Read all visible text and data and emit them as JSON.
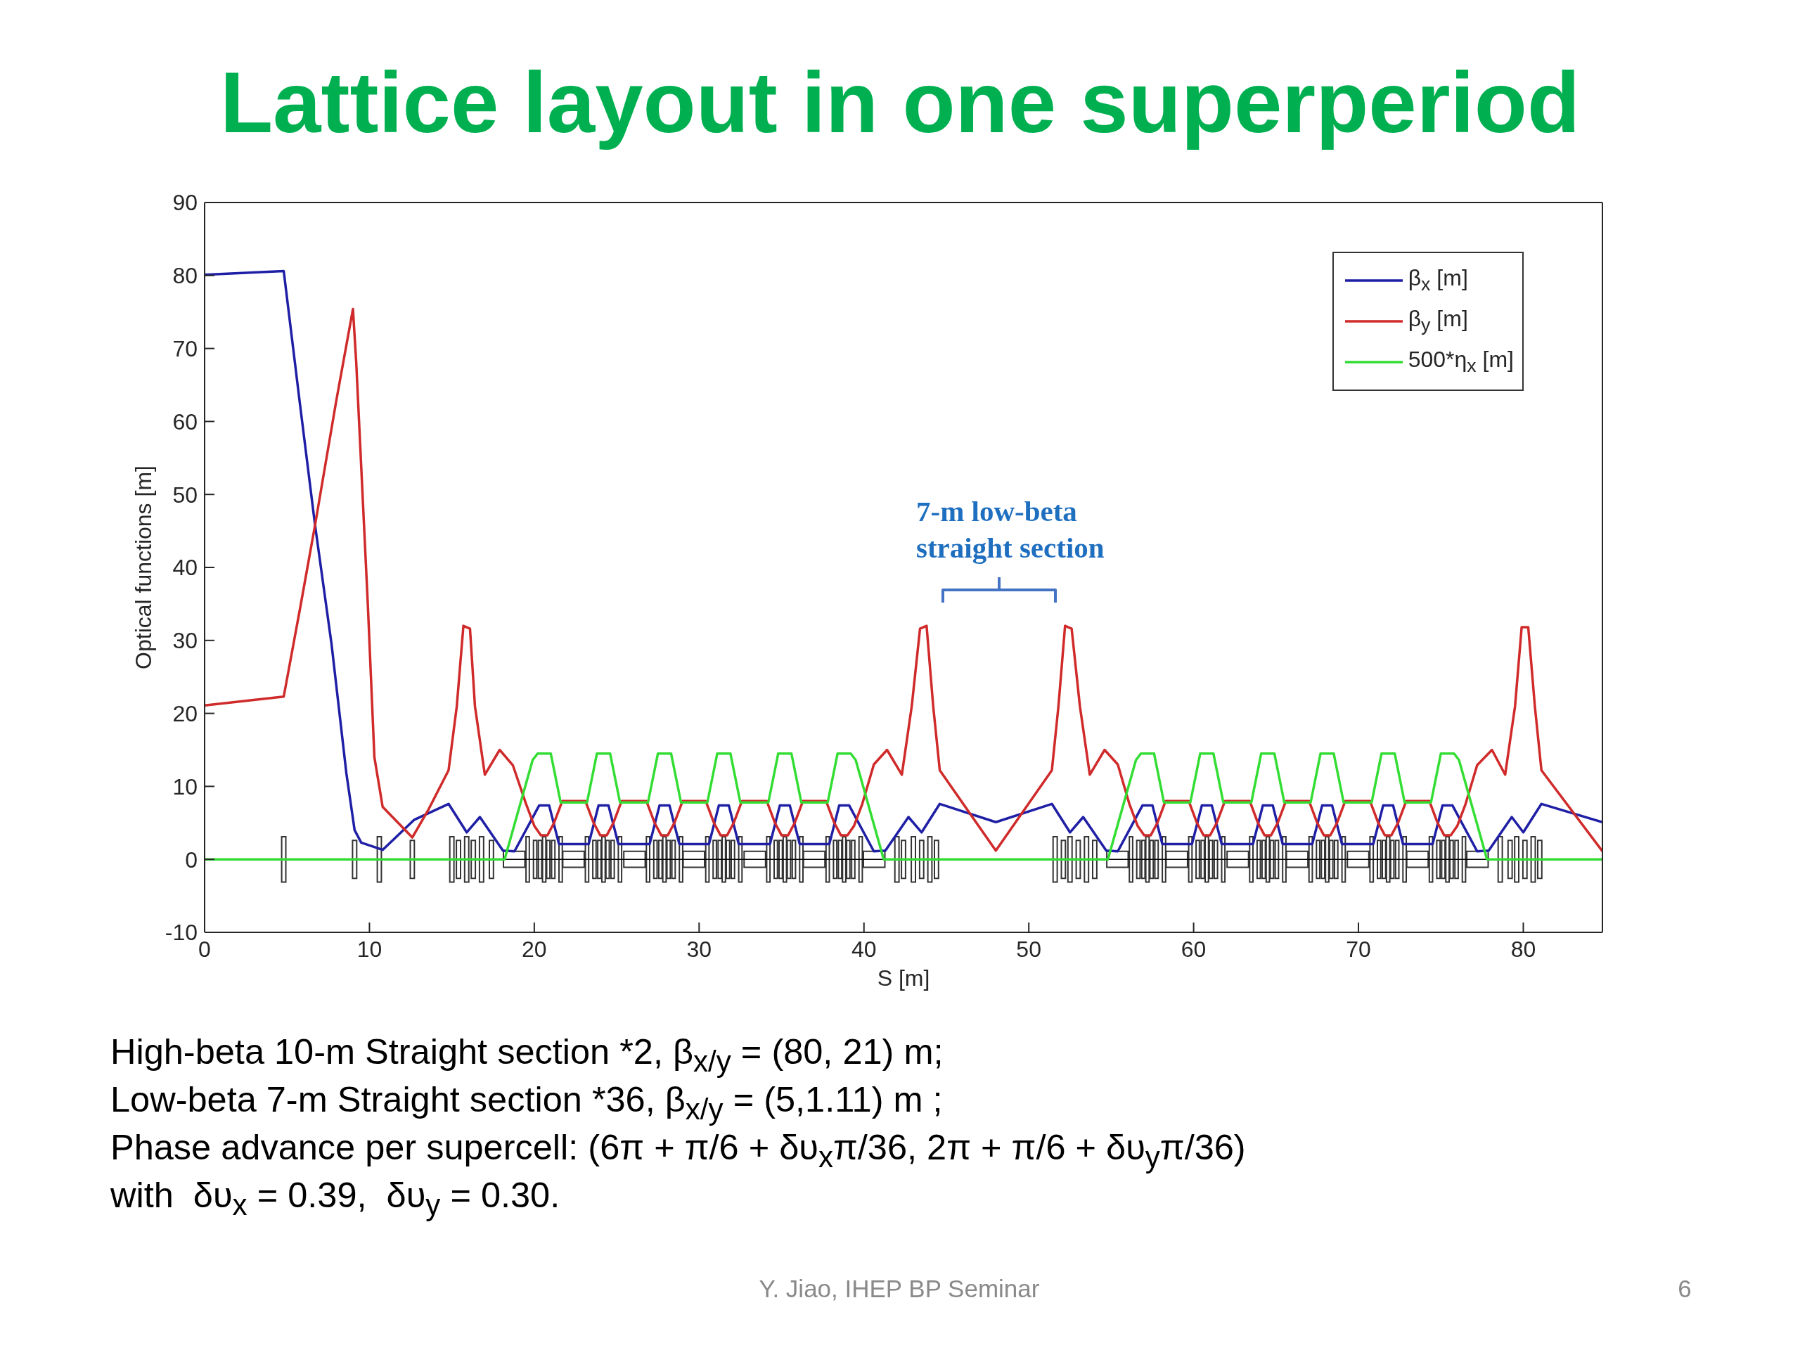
{
  "chart_data": {
    "type": "line",
    "title": "Lattice layout in one superperiod",
    "xlabel": "S [m]",
    "ylabel": "Optical functions [m]",
    "xlim": [
      0,
      84.8
    ],
    "xticks": [
      0,
      10,
      20,
      30,
      40,
      50,
      60,
      70,
      80
    ],
    "ylim": [
      -10,
      90
    ],
    "yticks": [
      -10,
      0,
      10,
      20,
      30,
      40,
      50,
      60,
      70,
      80,
      90
    ],
    "legend": "top right",
    "series": [
      {
        "name": "β$_{x}$ [m]",
        "color": "#1f1fa6",
        "x": [
          0,
          4.8,
          5.8,
          6.7,
          7.7,
          8.6,
          9.1,
          9.5,
          10.8,
          12.7,
          14.8,
          15.9,
          16.7,
          18.1,
          18.8,
          20.3,
          20.9,
          21.5,
          23.3,
          23.9,
          24.5,
          25.1,
          27.0,
          27.6,
          28.2,
          28.8,
          30.6,
          31.2,
          31.8,
          32.4,
          34.3,
          34.9,
          35.5,
          36.1,
          37.9,
          38.5,
          39.1,
          40.6,
          41.3,
          42.7,
          43.5,
          44.6,
          48.0,
          51.4,
          52.5,
          53.3,
          54.7,
          55.4,
          56.9,
          57.5,
          58.1,
          59.9,
          60.5,
          61.1,
          61.7,
          63.6,
          64.2,
          64.8,
          65.4,
          67.2,
          67.8,
          68.4,
          69.0,
          70.9,
          71.5,
          72.1,
          72.7,
          74.5,
          75.1,
          75.7,
          77.2,
          77.9,
          79.3,
          80.0,
          81.1,
          84.8
        ],
        "values": [
          80.1,
          80.6,
          62.1,
          45.8,
          29.5,
          11.8,
          4.0,
          2.3,
          1.3,
          5.4,
          7.6,
          3.7,
          5.8,
          1.2,
          1.1,
          7.4,
          7.4,
          2.1,
          2.1,
          7.4,
          7.4,
          2.1,
          2.1,
          7.4,
          7.4,
          2.1,
          2.1,
          7.4,
          7.4,
          2.1,
          2.1,
          7.4,
          7.4,
          2.1,
          2.1,
          7.4,
          7.4,
          1.1,
          1.2,
          5.8,
          3.7,
          7.6,
          5.1,
          7.6,
          3.7,
          5.8,
          1.2,
          1.1,
          7.4,
          7.4,
          2.1,
          2.1,
          7.4,
          7.4,
          2.1,
          2.1,
          7.4,
          7.4,
          2.1,
          2.1,
          7.4,
          7.4,
          2.1,
          2.1,
          7.4,
          7.4,
          2.1,
          2.1,
          7.4,
          7.4,
          1.1,
          1.2,
          5.8,
          3.7,
          7.6,
          5.1
        ]
      },
      {
        "name": "β$_{y}$ [m]",
        "color": "#d02a2a",
        "x": [
          0,
          4.8,
          5.8,
          6.7,
          8.0,
          9.0,
          9.2,
          9.9,
          10.3,
          10.8,
          12.6,
          13.6,
          14.8,
          15.3,
          15.7,
          16.1,
          16.4,
          17.0,
          17.9,
          18.7,
          19.5,
          20.0,
          20.4,
          20.8,
          21.2,
          21.7,
          23.1,
          23.6,
          24.0,
          24.4,
          24.8,
          25.3,
          26.8,
          27.3,
          27.7,
          28.1,
          28.5,
          29.0,
          30.4,
          30.9,
          31.3,
          31.7,
          32.1,
          32.6,
          34.1,
          34.6,
          35.0,
          35.4,
          35.8,
          36.3,
          37.7,
          38.2,
          38.6,
          39.0,
          39.4,
          39.9,
          40.6,
          41.4,
          42.3,
          42.9,
          43.4,
          43.8,
          44.2,
          44.6,
          48.0,
          51.4,
          51.8,
          52.2,
          52.6,
          53.1,
          53.7,
          54.6,
          55.4,
          56.1,
          56.6,
          57.0,
          57.4,
          57.8,
          58.3,
          59.7,
          60.2,
          60.6,
          61.0,
          61.4,
          61.9,
          63.4,
          63.9,
          64.3,
          64.7,
          65.1,
          65.6,
          67.0,
          67.5,
          67.9,
          68.3,
          68.7,
          69.2,
          70.7,
          71.2,
          71.6,
          72.0,
          72.4,
          72.9,
          74.3,
          74.8,
          75.2,
          75.6,
          76.0,
          76.5,
          77.2,
          78.1,
          78.9,
          79.5,
          79.9,
          80.3,
          80.7,
          81.1,
          84.8
        ],
        "values": [
          21.1,
          22.3,
          34.5,
          45.8,
          63.0,
          75.4,
          68.0,
          35.0,
          14.0,
          7.2,
          3.0,
          6.9,
          12.2,
          21.0,
          32.0,
          31.6,
          21.0,
          11.6,
          15.0,
          12.9,
          7.6,
          4.6,
          3.3,
          3.3,
          5.0,
          8.0,
          8.0,
          5.0,
          3.3,
          3.3,
          5.0,
          8.0,
          8.0,
          5.0,
          3.3,
          3.3,
          5.0,
          8.0,
          8.0,
          5.0,
          3.3,
          3.3,
          5.0,
          8.0,
          8.0,
          5.0,
          3.3,
          3.3,
          5.0,
          8.0,
          8.0,
          5.0,
          3.3,
          3.3,
          4.6,
          7.6,
          13.0,
          15.0,
          11.6,
          21.0,
          31.6,
          32.0,
          21.0,
          12.2,
          1.2,
          12.2,
          21.0,
          32.0,
          31.6,
          21.0,
          11.6,
          15.0,
          13.0,
          7.6,
          4.6,
          3.3,
          3.3,
          5.0,
          8.0,
          8.0,
          5.0,
          3.3,
          3.3,
          5.0,
          8.0,
          8.0,
          5.0,
          3.3,
          3.3,
          5.0,
          8.0,
          8.0,
          5.0,
          3.3,
          3.3,
          5.0,
          8.0,
          8.0,
          5.0,
          3.3,
          3.3,
          5.0,
          8.0,
          8.0,
          5.0,
          3.3,
          3.3,
          4.6,
          7.6,
          12.9,
          15.0,
          11.6,
          21.0,
          31.8,
          31.8,
          21.0,
          12.2,
          1.1
        ]
      },
      {
        "name": "500*η$_{x}$ [m]",
        "color": "#33dd33",
        "x": [
          0,
          18.2,
          19.9,
          20.2,
          21.0,
          21.6,
          23.2,
          23.8,
          24.6,
          25.2,
          26.9,
          27.5,
          28.3,
          28.9,
          30.5,
          31.1,
          31.9,
          32.5,
          34.2,
          34.8,
          35.6,
          36.2,
          37.8,
          38.4,
          39.2,
          39.5,
          41.2,
          54.8,
          56.5,
          56.8,
          57.6,
          58.2,
          59.8,
          60.4,
          61.2,
          61.8,
          63.5,
          64.1,
          64.9,
          65.5,
          67.1,
          67.7,
          68.5,
          69.1,
          70.8,
          71.4,
          72.2,
          72.8,
          74.4,
          75.0,
          75.8,
          76.1,
          77.8,
          84.8
        ],
        "values": [
          0,
          0,
          13.6,
          14.5,
          14.5,
          7.8,
          7.8,
          14.5,
          14.5,
          7.8,
          7.8,
          14.5,
          14.5,
          7.8,
          7.8,
          14.5,
          14.5,
          7.8,
          7.8,
          14.5,
          14.5,
          7.8,
          7.8,
          14.5,
          14.5,
          13.6,
          0,
          0,
          13.6,
          14.5,
          14.5,
          7.8,
          7.8,
          14.5,
          14.5,
          7.8,
          7.8,
          14.5,
          14.5,
          7.8,
          7.8,
          14.5,
          14.5,
          7.8,
          7.8,
          14.5,
          14.5,
          7.8,
          7.8,
          14.5,
          14.5,
          13.6,
          0,
          0
        ]
      }
    ],
    "ref_lines": [
      {
        "axis": "y",
        "value": 0,
        "color": "#000000"
      }
    ],
    "annotations": [
      "7-m low-beta straight section",
      "High-beta 10-m Straight section *2, β$_{x/y}$ = (80, 21) m;",
      "Low-beta 7-m Straight section *36, β$_{x/y}$ = (5,1.11) m ;",
      "Phase advance per supercell: (6π + π/6 + δυ$_{x}$π/36, 2π + π/6 + δυ$_{y}$π/36)",
      "with  δυ$_{x}$ = 0.39,  δυ$_{y}$ = 0.30.",
      "Y. Jiao, IHEP BP Seminar",
      "6"
    ]
  }
}
